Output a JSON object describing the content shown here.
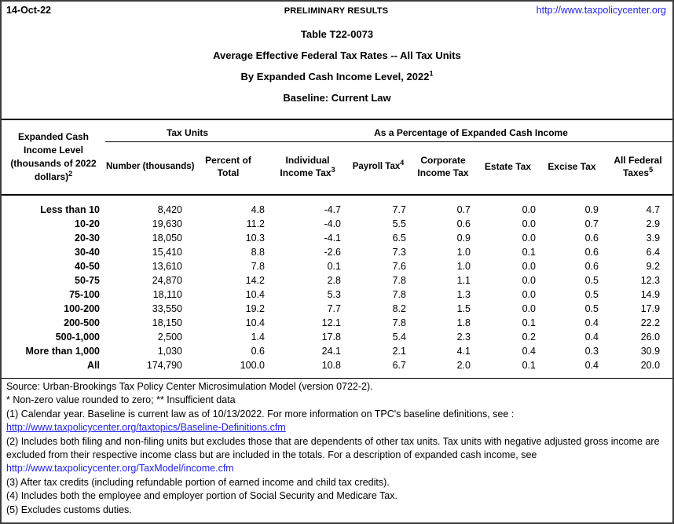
{
  "topbar": {
    "date": "14-Oct-22",
    "status": "PRELIMINARY RESULTS",
    "site_link": "http://www.taxpolicycenter.org"
  },
  "titles": {
    "line1": "Table T22-0073",
    "line2": "Average Effective Federal Tax Rates -- All Tax Units",
    "line3": "By Expanded Cash Income Level, 2022",
    "line3_sup": "1",
    "line4": "Baseline: Current Law"
  },
  "table": {
    "row_header": {
      "lines": [
        "Expanded Cash",
        "Income Level",
        "(thousands of 2022",
        "dollars)"
      ],
      "sup": "2"
    },
    "groups": [
      {
        "label": "Tax Units"
      },
      {
        "label": "As a Percentage of Expanded Cash Income"
      }
    ],
    "columns": [
      {
        "lines": [
          "Number (thousands)"
        ],
        "sup": "",
        "nowrap": true
      },
      {
        "lines": [
          "Percent of",
          "Total"
        ],
        "sup": ""
      },
      {
        "lines": [
          "Individual",
          "Income Tax"
        ],
        "sup": "3"
      },
      {
        "lines": [
          "Payroll Tax"
        ],
        "sup": "4",
        "nowrap": true
      },
      {
        "lines": [
          "Corporate",
          "Income Tax"
        ],
        "sup": ""
      },
      {
        "lines": [
          "Estate Tax"
        ],
        "sup": ""
      },
      {
        "lines": [
          "Excise Tax"
        ],
        "sup": ""
      },
      {
        "lines": [
          "All Federal",
          "Taxes"
        ],
        "sup": "5"
      }
    ],
    "rows": [
      {
        "label": "Less than 10",
        "values": [
          "8,420",
          "4.8",
          "-4.7",
          "7.7",
          "0.7",
          "0.0",
          "0.9",
          "4.7"
        ]
      },
      {
        "label": "10-20",
        "values": [
          "19,630",
          "11.2",
          "-4.0",
          "5.5",
          "0.6",
          "0.0",
          "0.7",
          "2.9"
        ]
      },
      {
        "label": "20-30",
        "values": [
          "18,050",
          "10.3",
          "-4.1",
          "6.5",
          "0.9",
          "0.0",
          "0.6",
          "3.9"
        ]
      },
      {
        "label": "30-40",
        "values": [
          "15,410",
          "8.8",
          "-2.6",
          "7.3",
          "1.0",
          "0.1",
          "0.6",
          "6.4"
        ]
      },
      {
        "label": "40-50",
        "values": [
          "13,610",
          "7.8",
          "0.1",
          "7.6",
          "1.0",
          "0.0",
          "0.6",
          "9.2"
        ]
      },
      {
        "label": "50-75",
        "values": [
          "24,870",
          "14.2",
          "2.8",
          "7.8",
          "1.1",
          "0.0",
          "0.5",
          "12.3"
        ]
      },
      {
        "label": "75-100",
        "values": [
          "18,110",
          "10.4",
          "5.3",
          "7.8",
          "1.3",
          "0.0",
          "0.5",
          "14.9"
        ]
      },
      {
        "label": "100-200",
        "values": [
          "33,550",
          "19.2",
          "7.7",
          "8.2",
          "1.5",
          "0.0",
          "0.5",
          "17.9"
        ]
      },
      {
        "label": "200-500",
        "values": [
          "18,150",
          "10.4",
          "12.1",
          "7.8",
          "1.8",
          "0.1",
          "0.4",
          "22.2"
        ]
      },
      {
        "label": "500-1,000",
        "values": [
          "2,500",
          "1.4",
          "17.8",
          "5.4",
          "2.3",
          "0.2",
          "0.4",
          "26.0"
        ]
      },
      {
        "label": "More than 1,000",
        "values": [
          "1,030",
          "0.6",
          "24.1",
          "2.1",
          "4.1",
          "0.4",
          "0.3",
          "30.9"
        ]
      },
      {
        "label": "All",
        "values": [
          "174,790",
          "100.0",
          "10.8",
          "6.7",
          "2.0",
          "0.1",
          "0.4",
          "20.0"
        ]
      }
    ]
  },
  "footer": {
    "lines": [
      {
        "type": "text",
        "text": "Source: Urban-Brookings Tax Policy Center Microsimulation Model (version 0722-2)."
      },
      {
        "type": "text",
        "text": "* Non-zero value rounded to zero; ** Insufficient data"
      },
      {
        "type": "text",
        "text": "(1) Calendar year. Baseline is current law as of 10/13/2022. For more information on TPC's baseline definitions, see :"
      },
      {
        "type": "link",
        "text": "http://www.taxpolicycenter.org/taxtopics/Baseline-Definitions.cfm",
        "underline": true
      },
      {
        "type": "text",
        "text": "(2) Includes both filing and non-filing units but excludes those that are dependents of other tax units. Tax units with negative adjusted gross income are"
      },
      {
        "type": "text",
        "text": "excluded from their respective income class but are included in the totals. For a description of expanded cash income, see"
      },
      {
        "type": "link",
        "text": "http://www.taxpolicycenter.org/TaxModel/income.cfm",
        "underline": false
      },
      {
        "type": "text",
        "text": "(3) After tax credits (including refundable portion of earned income and child tax credits)."
      },
      {
        "type": "text",
        "text": "(4) Includes both the employee and employer portion of Social Security and Medicare Tax."
      },
      {
        "type": "text",
        "text": "(5) Excludes customs duties."
      }
    ]
  },
  "colors": {
    "link": "#2222ee",
    "border": "#000000"
  }
}
